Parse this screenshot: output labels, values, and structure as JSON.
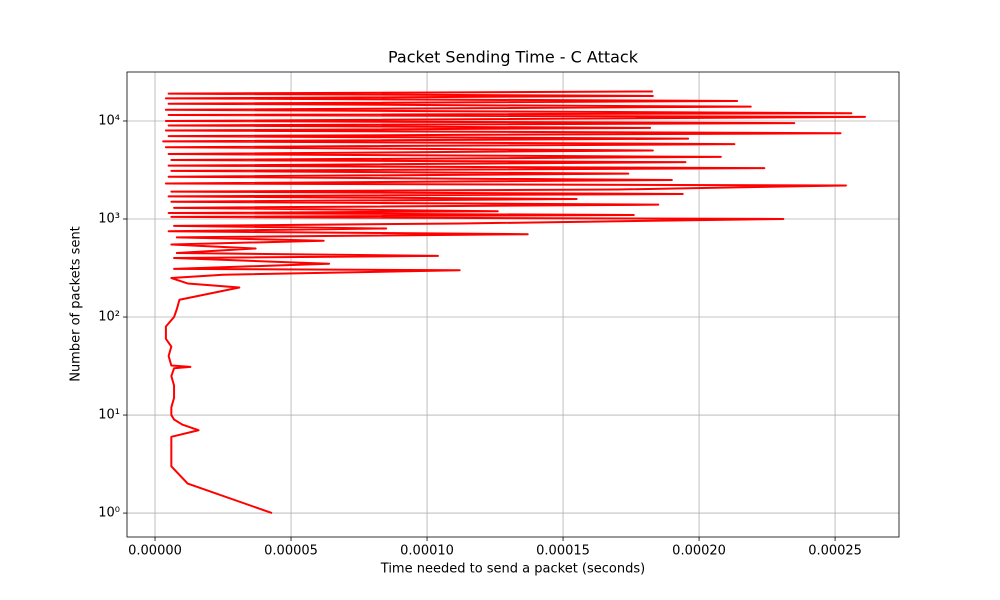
{
  "chart_data": {
    "type": "line",
    "title": "Packet Sending Time - C Attack",
    "xlabel": "Time needed to send a packet (seconds)",
    "ylabel": "Number of packets sent",
    "log_y": true,
    "grid": true,
    "xlim": [
      -1.03e-05,
      0.0002735
    ],
    "xticks": [
      {
        "value": 0,
        "label": "0.00000"
      },
      {
        "value": 5e-05,
        "label": "0.00005"
      },
      {
        "value": 0.0001,
        "label": "0.00010"
      },
      {
        "value": 0.00015,
        "label": "0.00015"
      },
      {
        "value": 0.0002,
        "label": "0.00020"
      },
      {
        "value": 0.00025,
        "label": "0.00025"
      }
    ],
    "ylim": [
      0.57,
      31600
    ],
    "yticks": [
      {
        "value": 1,
        "label": "10⁰"
      },
      {
        "value": 10,
        "label": "10¹"
      },
      {
        "value": 100,
        "label": "10²"
      },
      {
        "value": 1000,
        "label": "10³"
      },
      {
        "value": 10000,
        "label": "10⁴"
      }
    ],
    "series": [
      {
        "color": "#ff0000",
        "x": [
          4.3e-05,
          1.2e-05,
          6e-06,
          6e-06,
          6e-06,
          6e-06,
          1.6e-05,
          1e-05,
          7e-06,
          6e-06,
          6e-06,
          7e-06,
          7e-06,
          6e-06,
          7e-06,
          1.3e-05,
          6e-06,
          5e-06,
          6e-06,
          4e-06,
          4e-06,
          7e-06,
          8e-06,
          9e-06,
          3.1e-05,
          1.2e-05,
          6e-06,
          2.5e-05,
          0.000112,
          7e-06,
          6.4e-05,
          7e-06,
          0.000104,
          8e-06,
          3.7e-05,
          6e-06,
          6.2e-05,
          8e-06,
          0.000137,
          5e-06,
          8.5e-05,
          7e-06,
          0.000112,
          0.000231,
          6e-06,
          0.000176,
          5e-06,
          0.000126,
          7e-06,
          0.000185,
          6e-06,
          0.000155,
          5e-06,
          0.000194,
          6e-06,
          0.00017,
          0.000254,
          4e-06,
          0.00019,
          5e-06,
          0.000174,
          6e-06,
          0.000224,
          5e-06,
          0.000195,
          6e-06,
          0.000208,
          5e-06,
          0.000183,
          4e-06,
          0.000213,
          3e-06,
          0.000196,
          5e-06,
          0.000252,
          4e-06,
          0.000182,
          5e-06,
          0.000235,
          4e-06,
          0.000261,
          5e-06,
          0.000256,
          4e-06,
          0.000219,
          5e-06,
          0.000214,
          4e-06,
          0.000183,
          5e-06,
          0.000183
        ],
        "values": [
          1,
          2,
          3,
          4,
          5,
          6,
          7,
          8,
          9,
          10,
          12,
          15,
          20,
          25,
          30,
          31,
          32,
          40,
          50,
          60,
          80,
          100,
          120,
          150,
          200,
          220,
          250,
          270,
          300,
          310,
          350,
          400,
          420,
          450,
          500,
          550,
          600,
          650,
          700,
          750,
          800,
          850,
          900,
          1000,
          1050,
          1100,
          1150,
          1200,
          1300,
          1400,
          1500,
          1600,
          1700,
          1800,
          1900,
          2000,
          2200,
          2300,
          2500,
          2700,
          2900,
          3100,
          3300,
          3500,
          3800,
          4000,
          4300,
          4600,
          5000,
          5400,
          5800,
          6200,
          6600,
          7000,
          7500,
          8000,
          8500,
          9000,
          9500,
          10000,
          11000,
          11500,
          12000,
          13000,
          14000,
          15000,
          16000,
          17000,
          18000,
          19000,
          20000
        ]
      }
    ]
  }
}
